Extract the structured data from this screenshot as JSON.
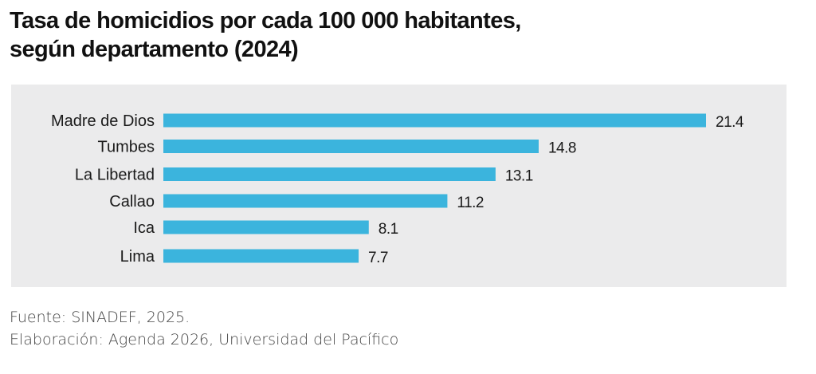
{
  "chart_data": {
    "type": "bar",
    "orientation": "horizontal",
    "title": "Tasa de homicidios por cada 100 000 habitantes, según departamento (2024)",
    "title_lines": [
      "Tasa de homicidios por cada 100 000 habitantes,",
      "según departamento (2024)"
    ],
    "categories": [
      "Madre de Dios",
      "Tumbes",
      "La Libertad",
      "Callao",
      "Ica",
      "Lima"
    ],
    "values": [
      21.4,
      14.8,
      13.1,
      11.2,
      8.1,
      7.7
    ],
    "value_labels": [
      "21.4",
      "14.8",
      "13.1",
      "11.2",
      "8.1",
      "7.7"
    ],
    "xlabel": "",
    "ylabel": "",
    "xlim": [
      0,
      21.4
    ],
    "grid": false,
    "legend": null,
    "bar_color": "#3bb4dd",
    "background_color": "#ebebec"
  },
  "footer": {
    "source": "Fuente: SINADEF, 2025.",
    "credit": "Elaboración: Agenda 2026, Universidad del Pacífico"
  }
}
